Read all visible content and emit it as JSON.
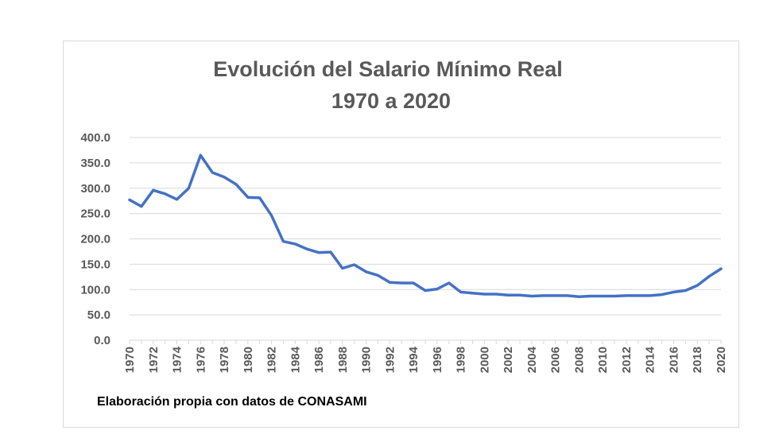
{
  "page": {
    "title_line1": "Evolución del Salario Mínimo Real",
    "title_line2": "1970 a 2020",
    "source_note": "Elaboración propia con datos de CONASAMI"
  },
  "colors": {
    "line": "#4472c4",
    "grid": "#d9d9d9",
    "axis_text": "#595959",
    "title": "#595959"
  },
  "chart_data": {
    "type": "line",
    "title": "Evolución del Salario Mínimo Real 1970 a 2020",
    "xlabel": "",
    "ylabel": "",
    "ylim": [
      0,
      400
    ],
    "yticks": [
      "0.0",
      "50.0",
      "100.0",
      "150.0",
      "200.0",
      "250.0",
      "300.0",
      "350.0",
      "400.0"
    ],
    "xticks": [
      "1970",
      "1972",
      "1974",
      "1976",
      "1978",
      "1980",
      "1982",
      "1984",
      "1986",
      "1988",
      "1990",
      "1992",
      "1994",
      "1996",
      "1998",
      "2000",
      "2002",
      "2004",
      "2006",
      "2008",
      "2010",
      "2012",
      "2014",
      "2016",
      "2018",
      "2020"
    ],
    "grid": true,
    "legend": "none",
    "x": [
      1970,
      1971,
      1972,
      1973,
      1974,
      1975,
      1976,
      1977,
      1978,
      1979,
      1980,
      1981,
      1982,
      1983,
      1984,
      1985,
      1986,
      1987,
      1988,
      1989,
      1990,
      1991,
      1992,
      1993,
      1994,
      1995,
      1996,
      1997,
      1998,
      1999,
      2000,
      2001,
      2002,
      2003,
      2004,
      2005,
      2006,
      2007,
      2008,
      2009,
      2010,
      2011,
      2012,
      2013,
      2014,
      2015,
      2016,
      2017,
      2018,
      2019,
      2020
    ],
    "series": [
      {
        "values": [
          277,
          264,
          296,
          289,
          278,
          300,
          365,
          331,
          322,
          308,
          282,
          281,
          246,
          195,
          190,
          180,
          173,
          174,
          142,
          149,
          135,
          128,
          114,
          113,
          113,
          98,
          101,
          113,
          95,
          93,
          91,
          91,
          89,
          89,
          87,
          88,
          88,
          88,
          86,
          87,
          87,
          87,
          88,
          88,
          88,
          90,
          95,
          98,
          108,
          126,
          141
        ]
      }
    ]
  }
}
